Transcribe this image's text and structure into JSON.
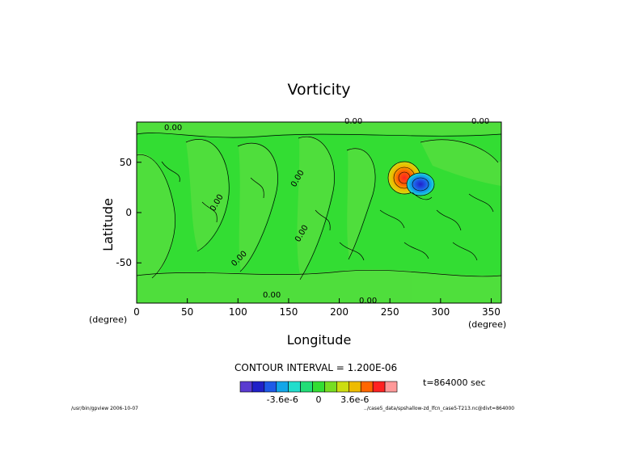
{
  "title": "Vorticity",
  "footer_left": "/usr/bin/gpview  2006-10-07",
  "footer_right": "../case5_data/spshallow-zd_lfcn_case5-T213.nc@divt=864000",
  "time_label": "t=864000 sec",
  "contour_interval_label": "CONTOUR INTERVAL = 1.200E-06",
  "colors": {
    "background_field": "#33dd33",
    "bands": [
      "#5a3bd0",
      "#2020c8",
      "#1e5ae8",
      "#12a6e8",
      "#22ddcc",
      "#22dd77",
      "#33dd33",
      "#77dd22",
      "#ccdd11",
      "#eebb00",
      "#ff6600",
      "#ff2222",
      "#ff9999"
    ]
  },
  "chart_data": {
    "type": "heatmap",
    "title": "Vorticity",
    "xlabel": "Longitude",
    "ylabel": "Latitude",
    "x_unit": "(degree)",
    "y_unit": "(degree)",
    "xlim": [
      0,
      360
    ],
    "ylim": [
      -90,
      90
    ],
    "xticks": [
      0,
      50,
      100,
      150,
      200,
      250,
      300,
      350
    ],
    "yticks": [
      -50,
      0,
      50
    ],
    "contour_interval": 1.2e-06,
    "contour_labels": [
      "0.00",
      "0.00",
      "0.00",
      "0.00",
      "0.00",
      "0.00",
      "0.00",
      "0.00",
      "0.00"
    ],
    "colorbar": {
      "tick_labels": [
        "-3.6e-6",
        "0",
        "3.6e-6"
      ],
      "tick_values": [
        -3.6e-06,
        0,
        3.6e-06
      ],
      "n_levels": 13
    },
    "features": [
      {
        "name": "positive vortex",
        "lon": 262,
        "lat": 35,
        "value_sign": "positive"
      },
      {
        "name": "negative vortex",
        "lon": 282,
        "lat": 25,
        "value_sign": "negative"
      }
    ]
  }
}
